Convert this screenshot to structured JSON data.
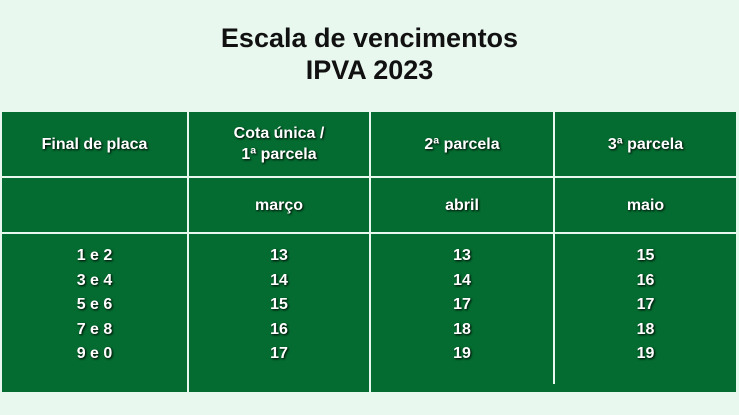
{
  "title": {
    "line1": "Escala de vencimentos",
    "line2": "IPVA 2023"
  },
  "table": {
    "headers": [
      "Final de placa",
      "Cota única /",
      "1ª parcela",
      "2ª parcela",
      "3ª parcela"
    ],
    "months": [
      "",
      "março",
      "abril",
      "maio"
    ],
    "columns": [
      [
        "1 e 2",
        "3 e 4",
        "5 e 6",
        "7 e 8",
        "9 e 0"
      ],
      [
        "13",
        "14",
        "15",
        "16",
        "17"
      ],
      [
        "13",
        "14",
        "17",
        "18",
        "19"
      ],
      [
        "15",
        "16",
        "17",
        "18",
        "19"
      ]
    ]
  },
  "colors": {
    "background": "#e8f8ef",
    "table": "#046c30"
  }
}
